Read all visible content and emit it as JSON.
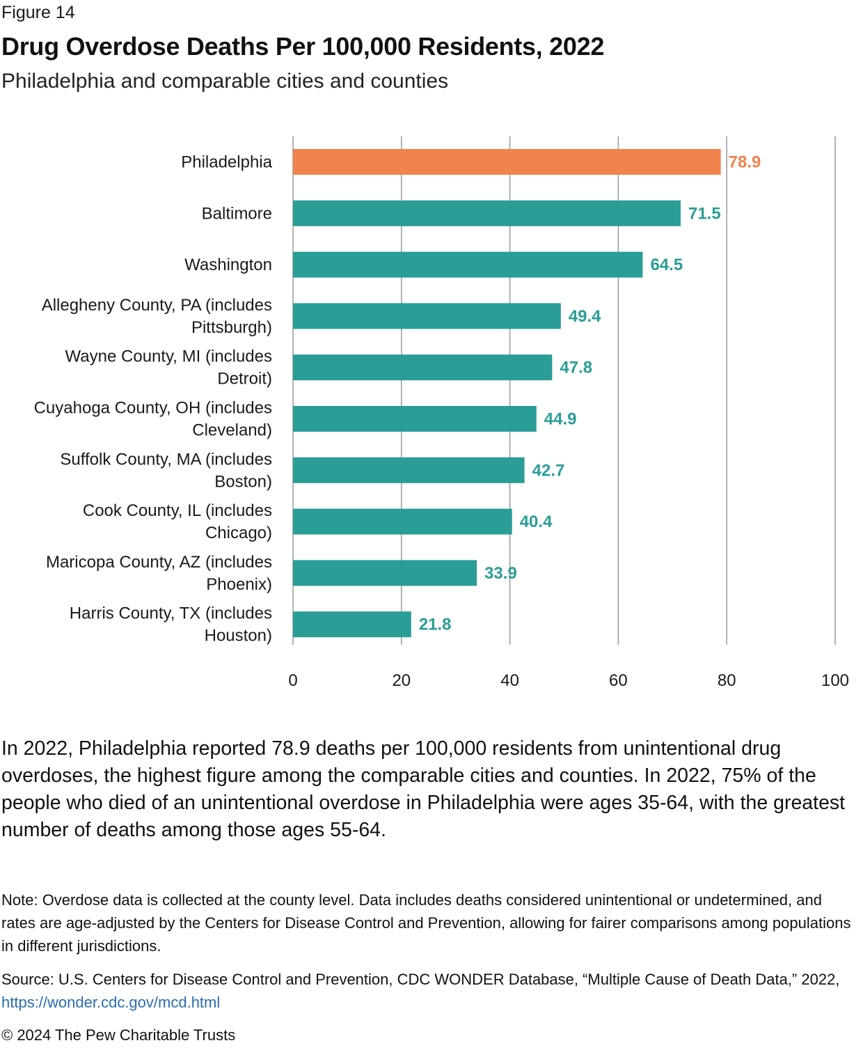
{
  "figure_label": "Figure 14",
  "title": "Drug Overdose Deaths Per 100,000 Residents, 2022",
  "subtitle": "Philadelphia and comparable cities and counties",
  "colors": {
    "highlight": "#F0834E",
    "bar": "#2A9D96",
    "grid": "#999999",
    "link": "#2B6CB0"
  },
  "chart_data": {
    "type": "bar",
    "orientation": "horizontal",
    "categories": [
      "Philadelphia",
      "Baltimore",
      "Washington",
      "Allegheny County, PA (includes Pittsburgh)",
      "Wayne County, MI (includes Detroit)",
      "Cuyahoga County, OH (includes Cleveland)",
      "Suffolk County, MA (includes Boston)",
      "Cook County, IL (includes Chicago)",
      "Maricopa County, AZ (includes Phoenix)",
      "Harris County, TX (includes Houston)"
    ],
    "category_lines": [
      [
        "Philadelphia"
      ],
      [
        "Baltimore"
      ],
      [
        "Washington"
      ],
      [
        "Allegheny County, PA (includes",
        "Pittsburgh)"
      ],
      [
        "Wayne County, MI (includes",
        "Detroit)"
      ],
      [
        "Cuyahoga County, OH (includes",
        "Cleveland)"
      ],
      [
        "Suffolk County, MA (includes",
        "Boston)"
      ],
      [
        "Cook County, IL (includes",
        "Chicago)"
      ],
      [
        "Maricopa County, AZ (includes",
        "Phoenix)"
      ],
      [
        "Harris County, TX (includes",
        "Houston)"
      ]
    ],
    "values": [
      78.9,
      71.5,
      64.5,
      49.4,
      47.8,
      44.9,
      42.7,
      40.4,
      33.9,
      21.8
    ],
    "value_labels": [
      "78.9",
      "71.5",
      "64.5",
      "49.4",
      "47.8",
      "44.9",
      "42.7",
      "40.4",
      "33.9",
      "21.8"
    ],
    "highlight_index": 0,
    "xlim": [
      0,
      100
    ],
    "xticks": [
      0,
      20,
      40,
      60,
      80,
      100
    ],
    "xtick_labels": [
      "0",
      "20",
      "40",
      "60",
      "80",
      "100"
    ],
    "grid": true,
    "xlabel": "",
    "ylabel": ""
  },
  "body_text": "In 2022, Philadelphia reported 78.9 deaths per 100,000 residents from unintentional drug overdoses, the highest figure among the comparable cities and counties. In 2022, 75% of the people who died of an unintentional overdose in Philadelphia were ages 35-64, with the greatest number of deaths among those ages 55-64.",
  "note": "Note: Overdose data is collected at the county level. Data includes deaths considered unintentional or undetermined, and rates are age-adjusted by the Centers for Disease Control and Prevention, allowing for fairer comparisons among populations in different jurisdictions.",
  "source_text": "Source: U.S. Centers for Disease Control and Prevention, CDC WONDER Database, “Multiple Cause of Death Data,” 2022, ",
  "source_link": "https://wonder.cdc.gov/mcd.html",
  "copyright": "© 2024 The Pew Charitable Trusts"
}
